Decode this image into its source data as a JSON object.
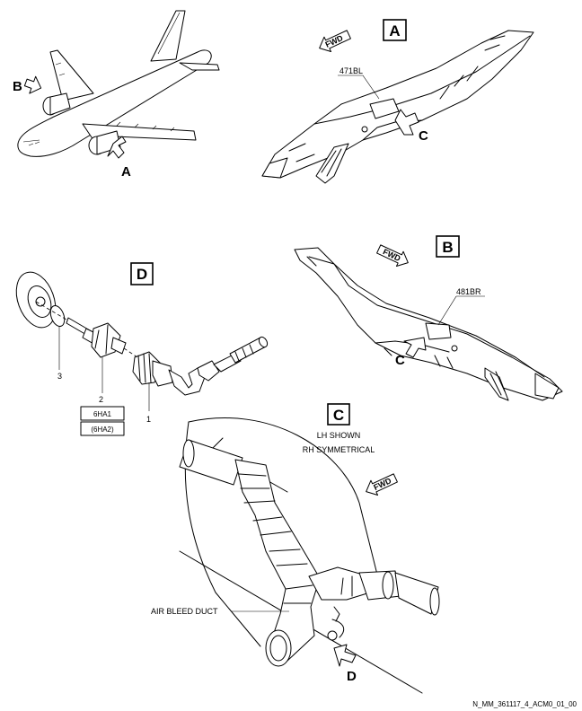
{
  "view_labels": {
    "a": "A",
    "b": "B",
    "c": "C",
    "d": "D"
  },
  "aircraft_callouts": {
    "a": "A",
    "b": "B"
  },
  "pylon_callouts": {
    "left": "C",
    "right": "C"
  },
  "duct_callout": "D",
  "access_panels": {
    "left": "471BL",
    "right": "481BR"
  },
  "fwd_labels": {
    "view_a": "FWD",
    "view_b": "FWD",
    "view_c": "FWD"
  },
  "view_c_notes": {
    "line1": "LH SHOWN",
    "line2": "RH SYMMETRICAL"
  },
  "duct_label": "AIR BLEED DUCT",
  "item_numbers": {
    "connector": "1",
    "sensor": "2",
    "seal": "3"
  },
  "sensor_ids": {
    "primary": "6HA1",
    "secondary": "(6HA2)"
  },
  "figure_ref": "N_MM_361117_4_ACM0_01_00"
}
